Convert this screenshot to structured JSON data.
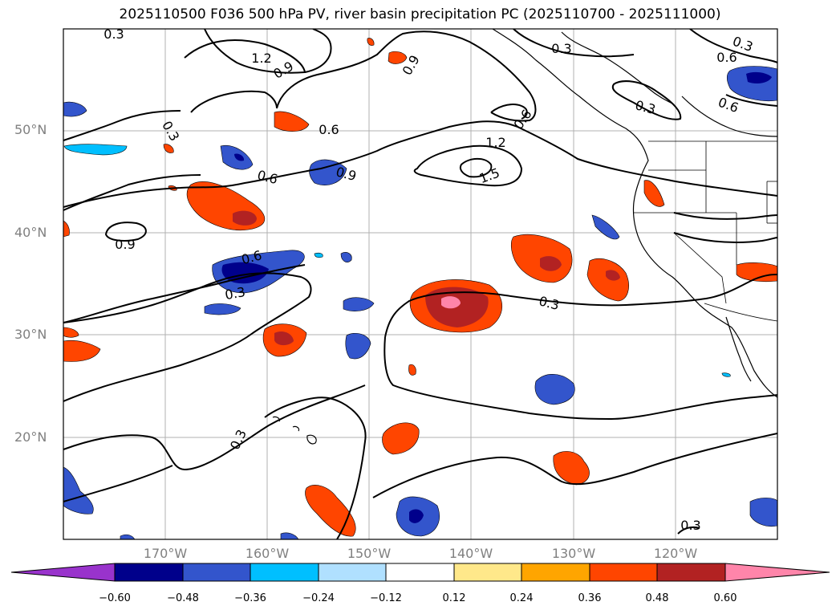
{
  "title": "2025110500 F036 500 hPa PV, river basin precipitation PC (2025110700 - 2025111000)",
  "lat_labels": [
    "50°N",
    "40°N",
    "30°N",
    "20°N"
  ],
  "lon_labels": [
    "170°W",
    "160°W",
    "150°W",
    "140°W",
    "130°W",
    "120°W"
  ],
  "contour_labels": [
    "0.3",
    "1.2",
    "0.9",
    "0.9",
    "0.3",
    "0.6",
    "0.3",
    "0.6",
    "0.6",
    "0.9",
    "1.2",
    "1.5",
    "0.6",
    "0.3",
    "0.9",
    "0.6",
    "0.3",
    "0.3",
    "0.3",
    "0.3",
    "0.6",
    "0.3"
  ],
  "colorbar": {
    "ticks": [
      "−0.60",
      "−0.48",
      "−0.36",
      "−0.24",
      "−0.12",
      "0.12",
      "0.24",
      "0.36",
      "0.48",
      "0.60"
    ],
    "colors": [
      "#9933cc",
      "#00008b",
      "#3355cc",
      "#00bfff",
      "#b0e0ff",
      "#ffffff",
      "#ffe88a",
      "#ffa500",
      "#ff4500",
      "#b22222",
      "#ff85aa"
    ]
  }
}
